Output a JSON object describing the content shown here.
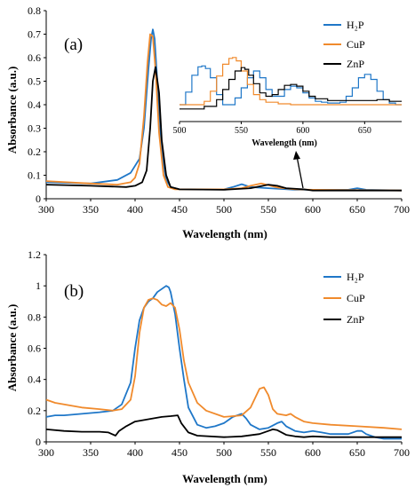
{
  "chart_data": [
    {
      "type": "line",
      "panel_label": "(a)",
      "xlabel": "Wavelength (nm)",
      "ylabel": "Absorbance (a.u.)",
      "xlim": [
        300,
        700
      ],
      "ylim": [
        0,
        0.8
      ],
      "xticks": [
        "300",
        "350",
        "400",
        "450",
        "500",
        "550",
        "600",
        "650",
        "700"
      ],
      "yticks": [
        "0",
        "0.1",
        "0.2",
        "0.3",
        "0.4",
        "0.5",
        "0.6",
        "0.7",
        "0.8"
      ],
      "legend_position": "top-right",
      "series": [
        {
          "name": "H₂P",
          "color": "#1f77c8",
          "x": [
            300,
            350,
            380,
            395,
            405,
            410,
            415,
            418,
            420,
            422,
            425,
            430,
            435,
            440,
            450,
            500,
            510,
            520,
            530,
            550,
            580,
            600,
            640,
            650,
            660,
            700
          ],
          "y": [
            0.07,
            0.065,
            0.08,
            0.11,
            0.17,
            0.3,
            0.55,
            0.68,
            0.72,
            0.68,
            0.5,
            0.2,
            0.08,
            0.05,
            0.04,
            0.04,
            0.05,
            0.062,
            0.05,
            0.045,
            0.038,
            0.038,
            0.038,
            0.045,
            0.038,
            0.035
          ]
        },
        {
          "name": "CuP",
          "color": "#f08a2c",
          "x": [
            300,
            350,
            380,
            395,
            400,
            405,
            410,
            414,
            417,
            420,
            423,
            427,
            432,
            437,
            445,
            500,
            520,
            530,
            542,
            550,
            560,
            580,
            600,
            700
          ],
          "y": [
            0.075,
            0.065,
            0.06,
            0.07,
            0.09,
            0.15,
            0.35,
            0.58,
            0.7,
            0.69,
            0.55,
            0.28,
            0.1,
            0.05,
            0.04,
            0.04,
            0.045,
            0.055,
            0.065,
            0.058,
            0.048,
            0.04,
            0.038,
            0.035
          ]
        },
        {
          "name": "ZnP",
          "color": "#000000",
          "x": [
            300,
            350,
            390,
            400,
            408,
            413,
            417,
            420,
            423,
            427,
            430,
            435,
            440,
            450,
            500,
            530,
            550,
            560,
            570,
            590,
            600,
            700
          ],
          "y": [
            0.06,
            0.055,
            0.05,
            0.055,
            0.07,
            0.12,
            0.3,
            0.5,
            0.56,
            0.45,
            0.25,
            0.1,
            0.05,
            0.04,
            0.038,
            0.045,
            0.06,
            0.055,
            0.045,
            0.04,
            0.035,
            0.035
          ]
        }
      ],
      "inset": {
        "xlabel": "Wavelength (nm)",
        "xlim": [
          500,
          680
        ],
        "xticks": [
          "500",
          "550",
          "600",
          "650"
        ],
        "series": [
          {
            "name": "H₂P",
            "color": "#1f77c8",
            "x": [
              500,
              505,
              510,
              515,
              518,
              521,
              525,
              530,
              535,
              540,
              545,
              550,
              555,
              560,
              565,
              570,
              575,
              580,
              585,
              590,
              595,
              600,
              605,
              610,
              615,
              620,
              625,
              630,
              635,
              640,
              645,
              650,
              655,
              660,
              665,
              670,
              675,
              680
            ],
            "y": [
              0.2,
              0.35,
              0.55,
              0.65,
              0.66,
              0.63,
              0.52,
              0.32,
              0.2,
              0.2,
              0.28,
              0.4,
              0.52,
              0.6,
              0.52,
              0.38,
              0.3,
              0.3,
              0.38,
              0.42,
              0.4,
              0.34,
              0.28,
              0.24,
              0.23,
              0.22,
              0.22,
              0.23,
              0.3,
              0.4,
              0.52,
              0.56,
              0.5,
              0.36,
              0.26,
              0.22,
              0.2,
              0.2
            ]
          },
          {
            "name": "CuP",
            "color": "#f08a2c",
            "x": [
              500,
              510,
              520,
              525,
              530,
              535,
              540,
              543,
              546,
              550,
              555,
              560,
              565,
              570,
              580,
              590,
              600,
              620,
              650,
              680
            ],
            "y": [
              0.2,
              0.2,
              0.24,
              0.36,
              0.54,
              0.68,
              0.75,
              0.76,
              0.72,
              0.6,
              0.44,
              0.32,
              0.26,
              0.23,
              0.21,
              0.2,
              0.2,
              0.2,
              0.2,
              0.2
            ]
          },
          {
            "name": "ZnP",
            "color": "#000000",
            "x": [
              500,
              520,
              530,
              535,
              540,
              545,
              550,
              553,
              556,
              560,
              565,
              570,
              575,
              580,
              585,
              590,
              595,
              600,
              605,
              610,
              620,
              640,
              660,
              670,
              680
            ],
            "y": [
              0.15,
              0.18,
              0.26,
              0.38,
              0.5,
              0.6,
              0.64,
              0.62,
              0.55,
              0.45,
              0.34,
              0.3,
              0.32,
              0.38,
              0.43,
              0.44,
              0.42,
              0.36,
              0.3,
              0.27,
              0.25,
              0.25,
              0.26,
              0.24,
              0.24
            ]
          }
        ]
      }
    },
    {
      "type": "line",
      "panel_label": "(b)",
      "xlabel": "Wavelength (nm)",
      "ylabel": "Absorbance (a.u.)",
      "xlim": [
        300,
        700
      ],
      "ylim": [
        0,
        1.2
      ],
      "xticks": [
        "300",
        "350",
        "400",
        "450",
        "500",
        "550",
        "600",
        "650",
        "700"
      ],
      "yticks": [
        "0",
        "0.2",
        "0.4",
        "0.6",
        "0.8",
        "1",
        "1.2"
      ],
      "legend_position": "top-right",
      "series": [
        {
          "name": "H₂P",
          "color": "#1f77c8",
          "x": [
            300,
            310,
            320,
            340,
            360,
            375,
            385,
            395,
            400,
            405,
            410,
            415,
            420,
            425,
            430,
            435,
            438,
            440,
            445,
            450,
            455,
            460,
            470,
            480,
            490,
            500,
            510,
            520,
            525,
            530,
            540,
            550,
            560,
            565,
            570,
            580,
            590,
            600,
            610,
            620,
            640,
            650,
            655,
            660,
            670,
            680,
            700
          ],
          "y": [
            0.16,
            0.17,
            0.17,
            0.18,
            0.19,
            0.2,
            0.24,
            0.38,
            0.6,
            0.78,
            0.86,
            0.9,
            0.92,
            0.96,
            0.98,
            1.0,
            0.99,
            0.96,
            0.82,
            0.6,
            0.4,
            0.22,
            0.11,
            0.09,
            0.1,
            0.12,
            0.16,
            0.18,
            0.15,
            0.11,
            0.08,
            0.09,
            0.12,
            0.13,
            0.1,
            0.07,
            0.06,
            0.07,
            0.06,
            0.05,
            0.05,
            0.07,
            0.07,
            0.05,
            0.03,
            0.02,
            0.02
          ]
        },
        {
          "name": "CuP",
          "color": "#f08a2c",
          "x": [
            300,
            310,
            320,
            340,
            360,
            375,
            385,
            395,
            400,
            405,
            410,
            415,
            420,
            425,
            430,
            435,
            440,
            445,
            450,
            455,
            460,
            470,
            480,
            500,
            520,
            530,
            535,
            540,
            545,
            550,
            555,
            560,
            570,
            575,
            580,
            590,
            600,
            620,
            650,
            680,
            700
          ],
          "y": [
            0.27,
            0.25,
            0.24,
            0.22,
            0.21,
            0.2,
            0.21,
            0.27,
            0.42,
            0.7,
            0.86,
            0.91,
            0.92,
            0.91,
            0.88,
            0.87,
            0.89,
            0.86,
            0.72,
            0.52,
            0.38,
            0.25,
            0.2,
            0.16,
            0.17,
            0.22,
            0.28,
            0.34,
            0.35,
            0.3,
            0.21,
            0.18,
            0.17,
            0.18,
            0.16,
            0.13,
            0.12,
            0.11,
            0.1,
            0.09,
            0.08
          ]
        },
        {
          "name": "ZnP",
          "color": "#000000",
          "x": [
            300,
            320,
            340,
            360,
            370,
            378,
            382,
            390,
            400,
            410,
            420,
            430,
            440,
            448,
            452,
            460,
            470,
            500,
            520,
            540,
            550,
            555,
            560,
            565,
            570,
            580,
            590,
            600,
            620,
            650,
            680,
            700
          ],
          "y": [
            0.08,
            0.07,
            0.065,
            0.065,
            0.06,
            0.04,
            0.07,
            0.1,
            0.13,
            0.14,
            0.15,
            0.16,
            0.165,
            0.17,
            0.12,
            0.06,
            0.04,
            0.03,
            0.035,
            0.05,
            0.07,
            0.08,
            0.075,
            0.06,
            0.045,
            0.035,
            0.03,
            0.035,
            0.03,
            0.03,
            0.03,
            0.03
          ]
        }
      ]
    }
  ]
}
